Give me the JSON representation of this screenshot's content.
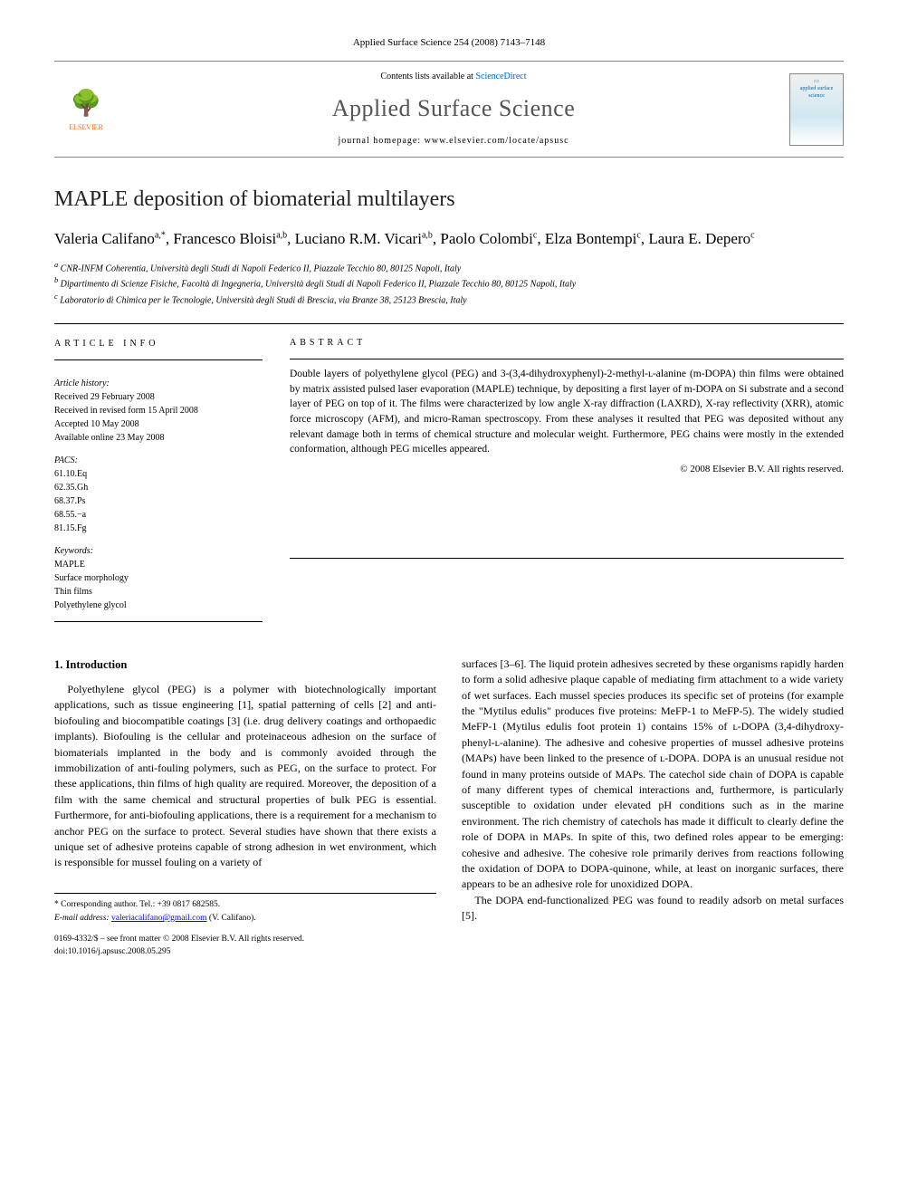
{
  "journal_ref": "Applied Surface Science 254 (2008) 7143–7148",
  "header": {
    "contents_prefix": "Contents lists available at ",
    "contents_link": "ScienceDirect",
    "journal_name": "Applied Surface Science",
    "homepage_prefix": "journal homepage: ",
    "homepage_url": "www.elsevier.com/locate/apsusc",
    "publisher": "ELSEVIER",
    "cover_text": "applied surface science"
  },
  "title": "MAPLE deposition of biomaterial multilayers",
  "authors_html": "Valeria Califano<sup>a,*</sup>, Francesco Bloisi<sup>a,b</sup>, Luciano R.M. Vicari<sup>a,b</sup>, Paolo Colombi<sup>c</sup>, Elza Bontempi<sup>c</sup>, Laura E. Depero<sup>c</sup>",
  "authors": [
    {
      "name": "Valeria Califano",
      "aff": "a,*"
    },
    {
      "name": "Francesco Bloisi",
      "aff": "a,b"
    },
    {
      "name": "Luciano R.M. Vicari",
      "aff": "a,b"
    },
    {
      "name": "Paolo Colombi",
      "aff": "c"
    },
    {
      "name": "Elza Bontempi",
      "aff": "c"
    },
    {
      "name": "Laura E. Depero",
      "aff": "c"
    }
  ],
  "affiliations": {
    "a": "CNR-INFM Coherentia, Università degli Studi di Napoli Federico II, Piazzale Tecchio 80, 80125 Napoli, Italy",
    "b": "Dipartimento di Scienze Fisiche, Facoltà di Ingegneria, Università degli Studi di Napoli Federico II, Piazzale Tecchio 80, 80125 Napoli, Italy",
    "c": "Laboratorio di Chimica per le Tecnologie, Università degli Studi di Brescia, via Branze 38, 25123 Brescia, Italy"
  },
  "article_info": {
    "heading": "ARTICLE INFO",
    "history_label": "Article history:",
    "received": "Received 29 February 2008",
    "revised": "Received in revised form 15 April 2008",
    "accepted": "Accepted 10 May 2008",
    "online": "Available online 23 May 2008",
    "pacs_label": "PACS:",
    "pacs": [
      "61.10.Eq",
      "62.35.Gh",
      "68.37.Ps",
      "68.55.−a",
      "81.15.Fg"
    ],
    "keywords_label": "Keywords:",
    "keywords": [
      "MAPLE",
      "Surface morphology",
      "Thin films",
      "Polyethylene glycol"
    ]
  },
  "abstract": {
    "heading": "ABSTRACT",
    "text": "Double layers of polyethylene glycol (PEG) and 3-(3,4-dihydroxyphenyl)-2-methyl-ʟ-alanine (m-DOPA) thin films were obtained by matrix assisted pulsed laser evaporation (MAPLE) technique, by depositing a first layer of m-DOPA on Si substrate and a second layer of PEG on top of it. The films were characterized by low angle X-ray diffraction (LAXRD), X-ray reflectivity (XRR), atomic force microscopy (AFM), and micro-Raman spectroscopy. From these analyses it resulted that PEG was deposited without any relevant damage both in terms of chemical structure and molecular weight. Furthermore, PEG chains were mostly in the extended conformation, although PEG micelles appeared.",
    "copyright": "© 2008 Elsevier B.V. All rights reserved."
  },
  "body": {
    "section1_heading": "1. Introduction",
    "p1": "Polyethylene glycol (PEG) is a polymer with biotechnologically important applications, such as tissue engineering [1], spatial patterning of cells [2] and anti-biofouling and biocompatible coatings [3] (i.e. drug delivery coatings and orthopaedic implants). Biofouling is the cellular and proteinaceous adhesion on the surface of biomaterials implanted in the body and is commonly avoided through the immobilization of anti-fouling polymers, such as PEG, on the surface to protect. For these applications, thin films of high quality are required. Moreover, the deposition of a film with the same chemical and structural properties of bulk PEG is essential. Furthermore, for anti-biofouling applications, there is a requirement for a mechanism to anchor PEG on the surface to protect. Several studies have shown that there exists a unique set of adhesive proteins capable of strong adhesion in wet environment, which is responsible for mussel fouling on a variety of",
    "p2": "surfaces [3–6]. The liquid protein adhesives secreted by these organisms rapidly harden to form a solid adhesive plaque capable of mediating firm attachment to a wide variety of wet surfaces. Each mussel species produces its specific set of proteins (for example the \"Mytilus edulis\" produces five proteins: MeFP-1 to MeFP-5). The widely studied MeFP-1 (Mytilus edulis foot protein 1) contains 15% of ʟ-DOPA (3,4-dihydroxy-phenyl-ʟ-alanine). The adhesive and cohesive properties of mussel adhesive proteins (MAPs) have been linked to the presence of ʟ-DOPA. DOPA is an unusual residue not found in many proteins outside of MAPs. The catechol side chain of DOPA is capable of many different types of chemical interactions and, furthermore, is particularly susceptible to oxidation under elevated pH conditions such as in the marine environment. The rich chemistry of catechols has made it difficult to clearly define the role of DOPA in MAPs. In spite of this, two defined roles appear to be emerging: cohesive and adhesive. The cohesive role primarily derives from reactions following the oxidation of DOPA to DOPA-quinone, while, at least on inorganic surfaces, there appears to be an adhesive role for unoxidized DOPA.",
    "p3": "The DOPA end-functionalized PEG was found to readily adsorb on metal surfaces [5]."
  },
  "footer": {
    "corr_label": "* Corresponding author. Tel.: +39 0817 682585.",
    "email_label": "E-mail address:",
    "email": "valeriacalifano@gmail.com",
    "email_name": "(V. Califano).",
    "issn_line": "0169-4332/$ – see front matter © 2008 Elsevier B.V. All rights reserved.",
    "doi": "doi:10.1016/j.apsusc.2008.05.295"
  },
  "colors": {
    "link": "#0066cc",
    "text": "#000000",
    "logo": "#ff6600",
    "rule": "#000000"
  }
}
